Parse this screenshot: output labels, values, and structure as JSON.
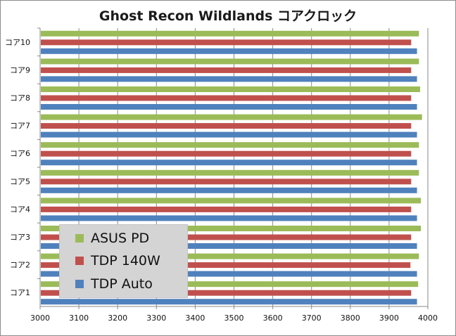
{
  "chart_data": {
    "type": "bar",
    "orientation": "horizontal",
    "title": "Ghost Recon Wildlands コアクロック",
    "xlabel": "",
    "ylabel": "",
    "xlim": [
      3000,
      4000
    ],
    "xticks": [
      3000,
      3100,
      3200,
      3300,
      3400,
      3500,
      3600,
      3700,
      3800,
      3900,
      4000
    ],
    "grid": "vertical",
    "legend_position": "lower-left-inside",
    "categories": [
      "コア1",
      "コア2",
      "コア3",
      "コア4",
      "コア5",
      "コア6",
      "コア7",
      "コア8",
      "コア9",
      "コア10"
    ],
    "series": [
      {
        "name": "TDP Auto",
        "color": "#4f81bd",
        "values": [
          3972,
          3972,
          3972,
          3972,
          3972,
          3972,
          3972,
          3972,
          3972,
          3972
        ]
      },
      {
        "name": "TDP 140W",
        "color": "#c0504d",
        "values": [
          3957,
          3955,
          3957,
          3957,
          3957,
          3957,
          3957,
          3957,
          3957,
          3957
        ]
      },
      {
        "name": "ASUS PD",
        "color": "#9bbb59",
        "values": [
          3975,
          3977,
          3982,
          3982,
          3977,
          3977,
          3985,
          3980,
          3977,
          3977
        ]
      }
    ],
    "legend_order": [
      "ASUS PD",
      "TDP 140W",
      "TDP Auto"
    ]
  }
}
